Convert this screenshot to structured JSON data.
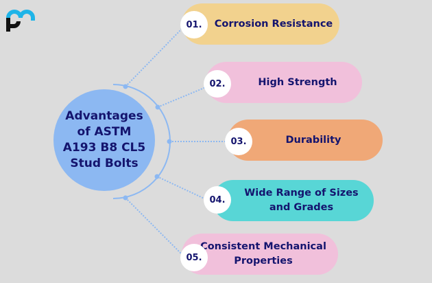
{
  "center": {
    "line1": "Advantages",
    "line2": "of ASTM",
    "line3": "A193 B8 CL5",
    "line4": "Stud Bolts",
    "color": "#8cb8f2"
  },
  "items": [
    {
      "num": "01.",
      "label": "Corrosion Resistance",
      "color": "#f2d28e"
    },
    {
      "num": "02.",
      "label": "High Strength",
      "color": "#f1c0db"
    },
    {
      "num": "03.",
      "label": "Durability",
      "color": "#f0a877"
    },
    {
      "num": "04.",
      "label": "Wide Range of Sizes and Grades",
      "color": "#58d6d6"
    },
    {
      "num": "05.",
      "label": "Consistent Mechanical Properties",
      "color": "#f1c0db"
    }
  ],
  "logo": {
    "icon": "pm-logo",
    "colors": [
      "#1fb4e8",
      "#111111"
    ]
  }
}
